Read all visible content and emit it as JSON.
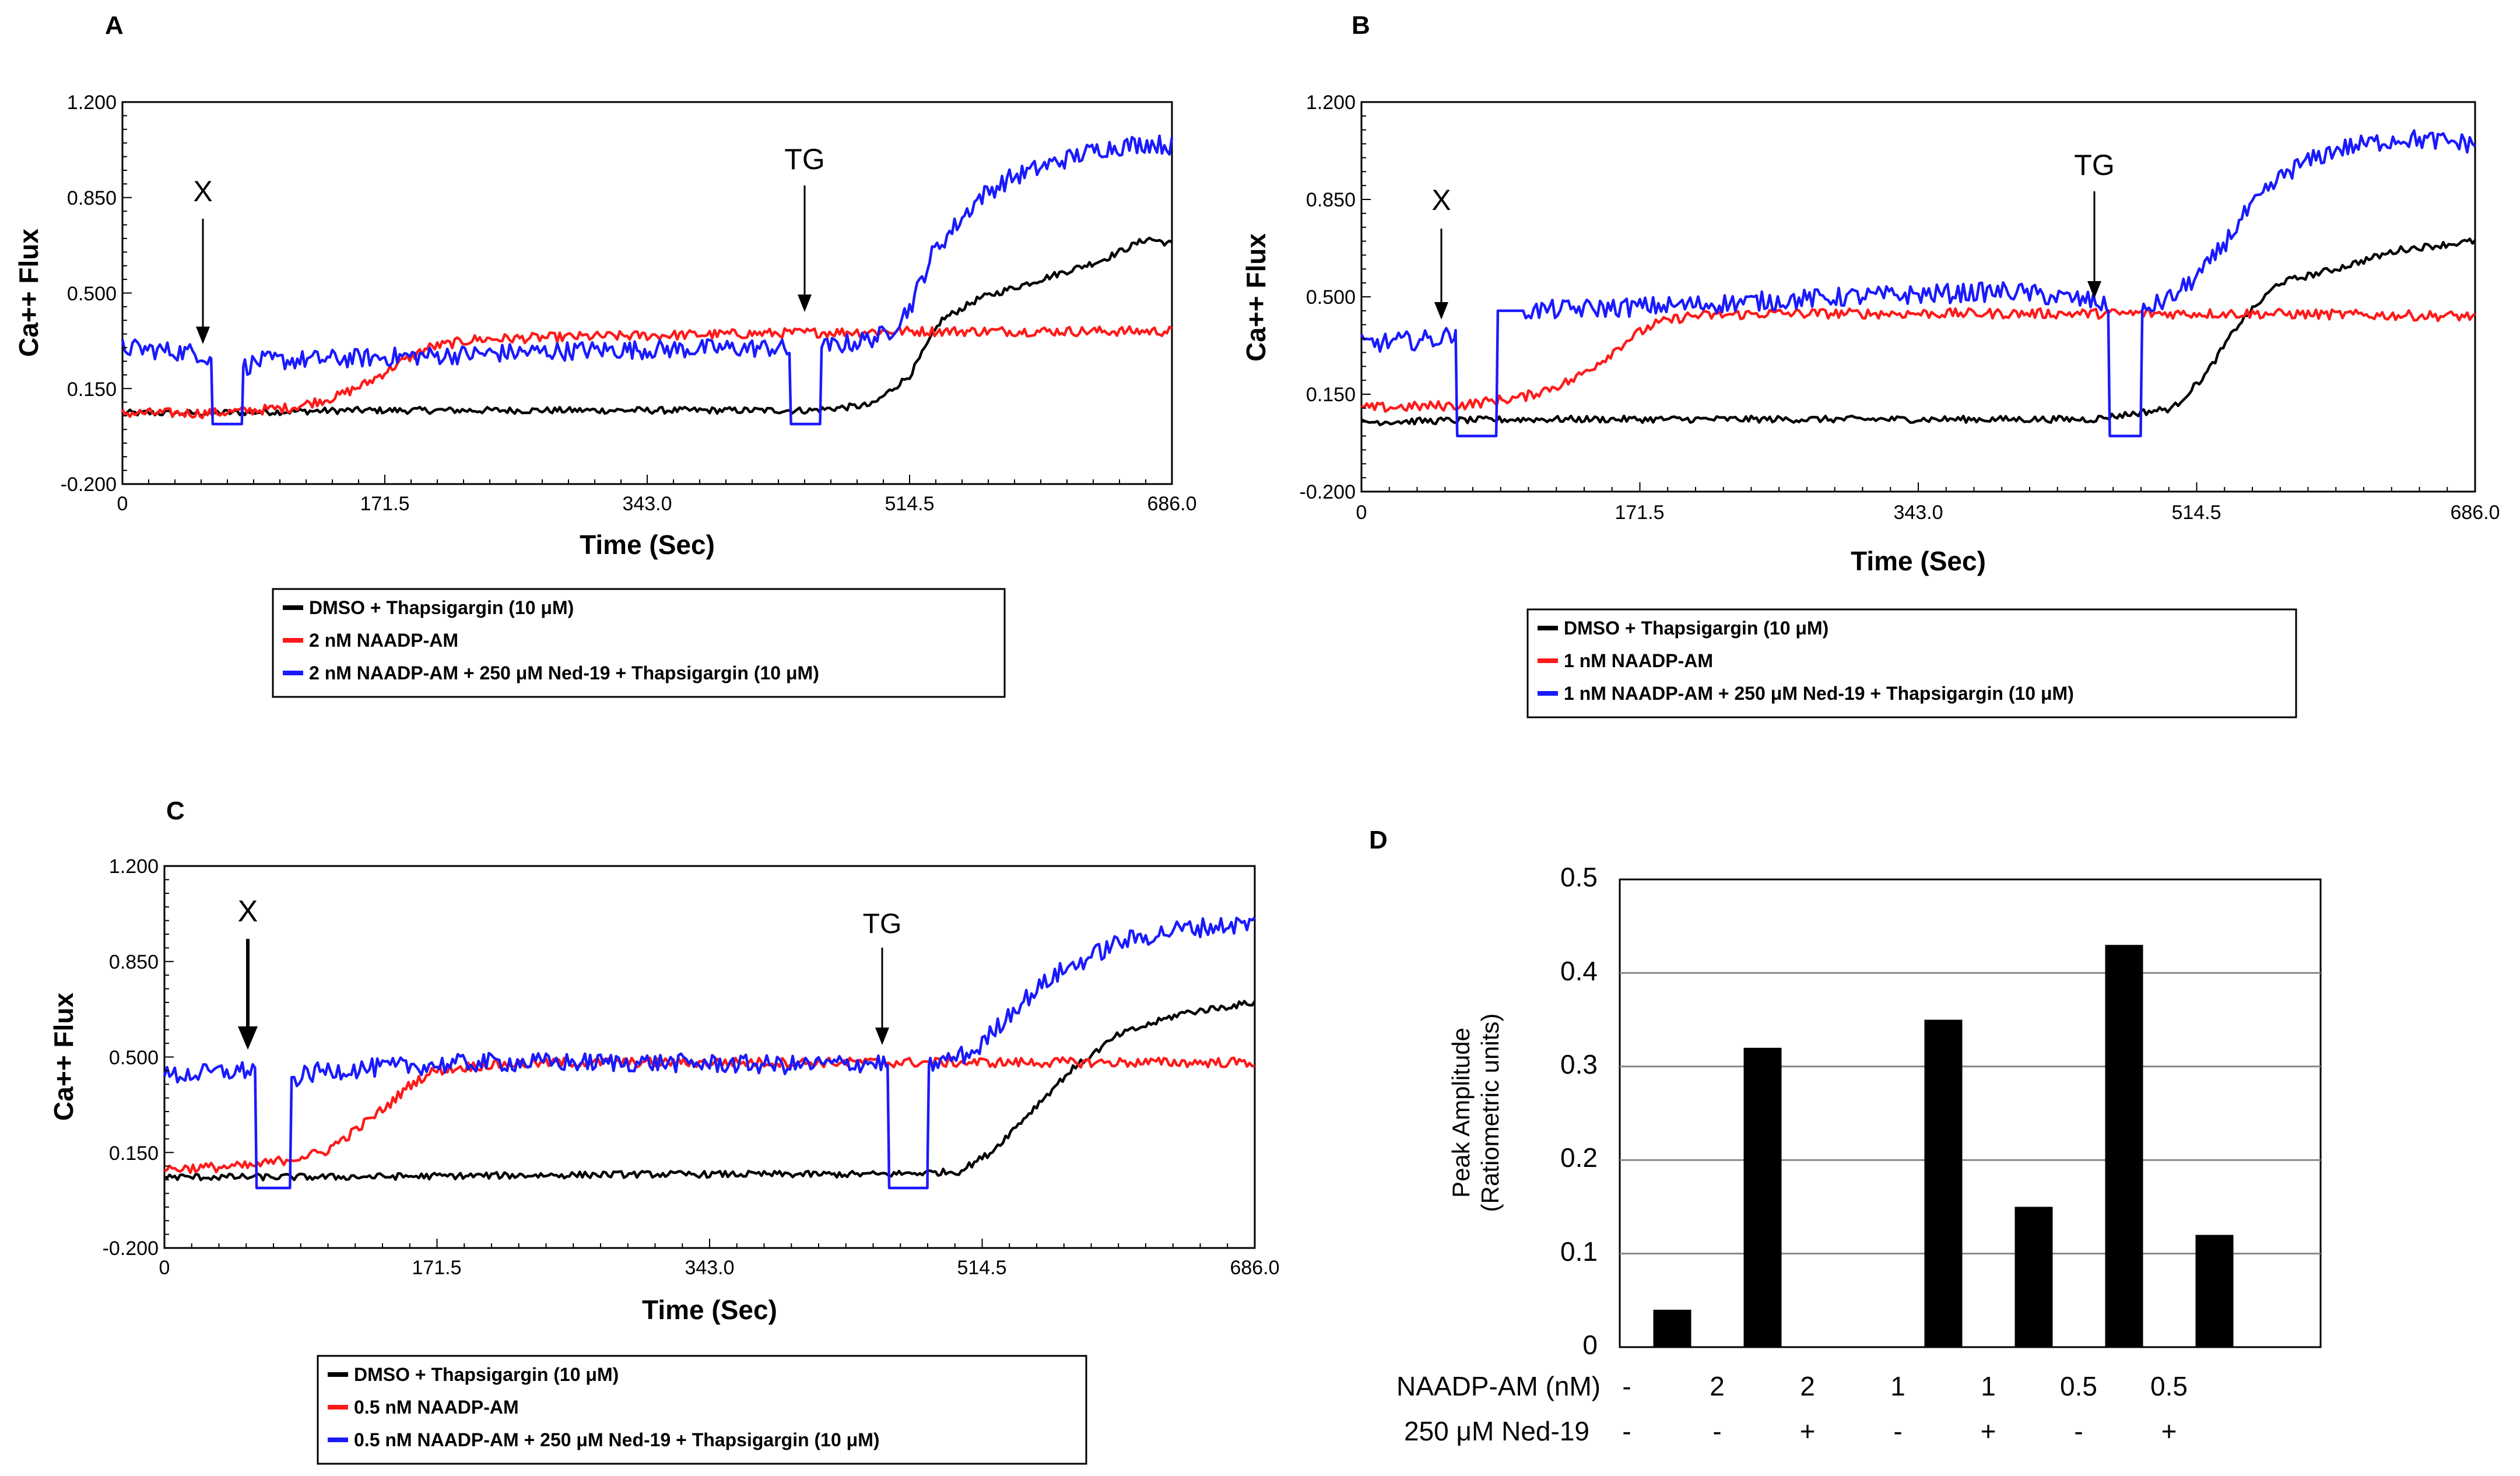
{
  "panels": [
    {
      "id": "A",
      "label": "A",
      "legend": [
        "DMSO + Thapsigargin (10 μM)",
        "2 nM NAADP-AM",
        "2 nM NAADP-AM + 250 μM Ned-19 + Thapsigargin (10 μM)"
      ],
      "annotations": [
        {
          "text": "X",
          "time": 60
        },
        {
          "text": "TG",
          "time": 457
        }
      ]
    },
    {
      "id": "B",
      "label": "B",
      "legend": [
        "DMSO + Thapsigargin (10 μM)",
        "1 nM NAADP-AM",
        "1 nM NAADP-AM + 250 μM Ned-19 + Thapsigargin (10 μM)"
      ],
      "annotations": [
        {
          "text": "X",
          "time": 60
        },
        {
          "text": "TG",
          "time": 457
        }
      ]
    },
    {
      "id": "C",
      "label": "C",
      "legend": [
        "DMSO + Thapsigargin (10 μM)",
        "0.5 nM NAADP-AM",
        "0.5 nM NAADP-AM + 250 μM Ned-19 + Thapsigargin (10 μM)"
      ],
      "annotations": [
        {
          "text": "X",
          "time": 60
        },
        {
          "text": "TG",
          "time": 457
        }
      ]
    },
    {
      "id": "D",
      "label": "D"
    }
  ],
  "colors": {
    "dmso": "#000000",
    "naadp": "#ff1a1a",
    "ned19": "#1a1aff"
  },
  "chart_data": [
    {
      "panel": "A",
      "type": "line",
      "xlabel": "Time (Sec)",
      "ylabel": "Ca++ Flux",
      "xlim": [
        0,
        686
      ],
      "ylim": [
        -0.2,
        1.2
      ],
      "xticks": [
        "0",
        "171.5",
        "343.0",
        "514.5",
        "686.0"
      ],
      "yticks": [
        "-0.200",
        "0.150",
        "0.500",
        "0.850",
        "1.200"
      ],
      "series": [
        {
          "name": "DMSO + Thapsigargin (10 μM)",
          "color": "#000000",
          "x": [
            0,
            50,
            150,
            300,
            450,
            490,
            515,
            535,
            560,
            600,
            640,
            670,
            686
          ],
          "y": [
            0.06,
            0.06,
            0.07,
            0.07,
            0.07,
            0.09,
            0.2,
            0.4,
            0.48,
            0.55,
            0.62,
            0.7,
            0.68
          ]
        },
        {
          "name": "2 nM NAADP-AM",
          "color": "#ff1a1a",
          "x": [
            0,
            60,
            110,
            140,
            160,
            180,
            200,
            230,
            300,
            400,
            500,
            600,
            686
          ],
          "y": [
            0.06,
            0.06,
            0.08,
            0.12,
            0.17,
            0.24,
            0.3,
            0.33,
            0.34,
            0.35,
            0.36,
            0.36,
            0.36
          ]
        },
        {
          "name": "2 nM NAADP-AM + 250 μM Ned-19 + Thapsigargin (10 μM)",
          "color": "#1a1aff",
          "x": [
            0,
            50,
            58,
            59,
            78,
            79,
            90,
            200,
            300,
            430,
            436,
            437,
            456,
            457,
            480,
            500,
            515,
            530,
            545,
            560,
            580,
            610,
            640,
            670,
            686
          ],
          "y": [
            0.3,
            0.28,
            0.26,
            0.02,
            0.02,
            0.23,
            0.25,
            0.27,
            0.29,
            0.3,
            0.28,
            0.02,
            0.02,
            0.3,
            0.32,
            0.35,
            0.45,
            0.65,
            0.75,
            0.85,
            0.92,
            0.98,
            1.03,
            1.05,
            1.04
          ]
        }
      ]
    },
    {
      "panel": "B",
      "type": "line",
      "xlabel": "Time (Sec)",
      "ylabel": "Ca++ Flux",
      "xlim": [
        0,
        686
      ],
      "ylim": [
        -0.2,
        1.2
      ],
      "xticks": [
        "0",
        "171.5",
        "343.0",
        "514.5",
        "686.0"
      ],
      "yticks": [
        "-0.200",
        "0.150",
        "0.500",
        "0.850",
        "1.200"
      ],
      "series": [
        {
          "name": "DMSO + Thapsigargin (10 μM)",
          "color": "#000000",
          "x": [
            0,
            100,
            300,
            450,
            500,
            520,
            540,
            565,
            600,
            640,
            686
          ],
          "y": [
            0.05,
            0.06,
            0.06,
            0.06,
            0.1,
            0.22,
            0.4,
            0.55,
            0.6,
            0.67,
            0.7
          ]
        },
        {
          "name": "1 nM NAADP-AM",
          "color": "#ff1a1a",
          "x": [
            0,
            60,
            100,
            130,
            150,
            165,
            180,
            200,
            250,
            350,
            450,
            550,
            686
          ],
          "y": [
            0.1,
            0.11,
            0.14,
            0.2,
            0.28,
            0.35,
            0.4,
            0.43,
            0.44,
            0.44,
            0.44,
            0.44,
            0.43
          ]
        },
        {
          "name": "1 nM NAADP-AM + 250 μM Ned-19 + Thapsigargin (10 μM)",
          "color": "#1a1aff",
          "x": [
            0,
            50,
            58,
            59,
            83,
            84,
            100,
            200,
            300,
            400,
            455,
            460,
            461,
            480,
            481,
            500,
            520,
            545,
            570,
            600,
            640,
            686
          ],
          "y": [
            0.33,
            0.35,
            0.38,
            0.0,
            0.0,
            0.45,
            0.45,
            0.47,
            0.5,
            0.52,
            0.48,
            0.45,
            0.0,
            0.0,
            0.45,
            0.5,
            0.6,
            0.8,
            0.95,
            1.03,
            1.07,
            1.05
          ]
        }
      ]
    },
    {
      "panel": "C",
      "type": "line",
      "xlabel": "Time (Sec)",
      "ylabel": "Ca++ Flux",
      "xlim": [
        0,
        686
      ],
      "ylim": [
        -0.2,
        1.2
      ],
      "xticks": [
        "0",
        "171.5",
        "343.0",
        "514.5",
        "686.0"
      ],
      "yticks": [
        "-0.200",
        "0.150",
        "0.500",
        "0.850",
        "1.200"
      ],
      "series": [
        {
          "name": "DMSO + Thapsigargin (10 μM)",
          "color": "#000000",
          "x": [
            0,
            100,
            300,
            450,
            500,
            520,
            545,
            570,
            600,
            640,
            686
          ],
          "y": [
            0.06,
            0.06,
            0.07,
            0.07,
            0.08,
            0.15,
            0.3,
            0.45,
            0.58,
            0.66,
            0.7
          ]
        },
        {
          "name": "0.5 nM NAADP-AM",
          "color": "#ff1a1a",
          "x": [
            0,
            55,
            100,
            120,
            140,
            155,
            170,
            200,
            250,
            350,
            450,
            550,
            686
          ],
          "y": [
            0.09,
            0.1,
            0.15,
            0.23,
            0.32,
            0.4,
            0.45,
            0.47,
            0.48,
            0.48,
            0.48,
            0.48,
            0.48
          ]
        },
        {
          "name": "0.5 nM NAADP-AM + 250 μM Ned-19 + Thapsigargin (10 μM)",
          "color": "#1a1aff",
          "x": [
            0,
            50,
            57,
            58,
            79,
            80,
            100,
            200,
            300,
            400,
            450,
            455,
            456,
            480,
            481,
            510,
            535,
            560,
            600,
            640,
            686
          ],
          "y": [
            0.43,
            0.45,
            0.46,
            0.02,
            0.02,
            0.42,
            0.45,
            0.48,
            0.48,
            0.47,
            0.48,
            0.47,
            0.02,
            0.02,
            0.47,
            0.52,
            0.68,
            0.8,
            0.92,
            0.97,
            0.99
          ]
        }
      ]
    },
    {
      "panel": "D",
      "type": "bar",
      "ylabel": "Peak Amplitude (Ratiometric units)",
      "ylabel_lines": [
        "Peak Amplitude",
        "(Ratiometric units)"
      ],
      "ylim": [
        0,
        0.5
      ],
      "yticks": [
        "0",
        "0.1",
        "0.2",
        "0.3",
        "0.4",
        "0.5"
      ],
      "row_labels": [
        "NAADP-AM (nM)",
        "250 μM Ned-19"
      ],
      "categories": [
        {
          "naadp": "-",
          "ned19": "-"
        },
        {
          "naadp": "2",
          "ned19": "-"
        },
        {
          "naadp": "2",
          "ned19": "+"
        },
        {
          "naadp": "1",
          "ned19": "-"
        },
        {
          "naadp": "1",
          "ned19": "+"
        },
        {
          "naadp": "0.5",
          "ned19": "-"
        },
        {
          "naadp": "0.5",
          "ned19": "+"
        }
      ],
      "values": [
        0.04,
        0.32,
        0.0,
        0.35,
        0.15,
        0.43,
        0.12
      ]
    }
  ]
}
